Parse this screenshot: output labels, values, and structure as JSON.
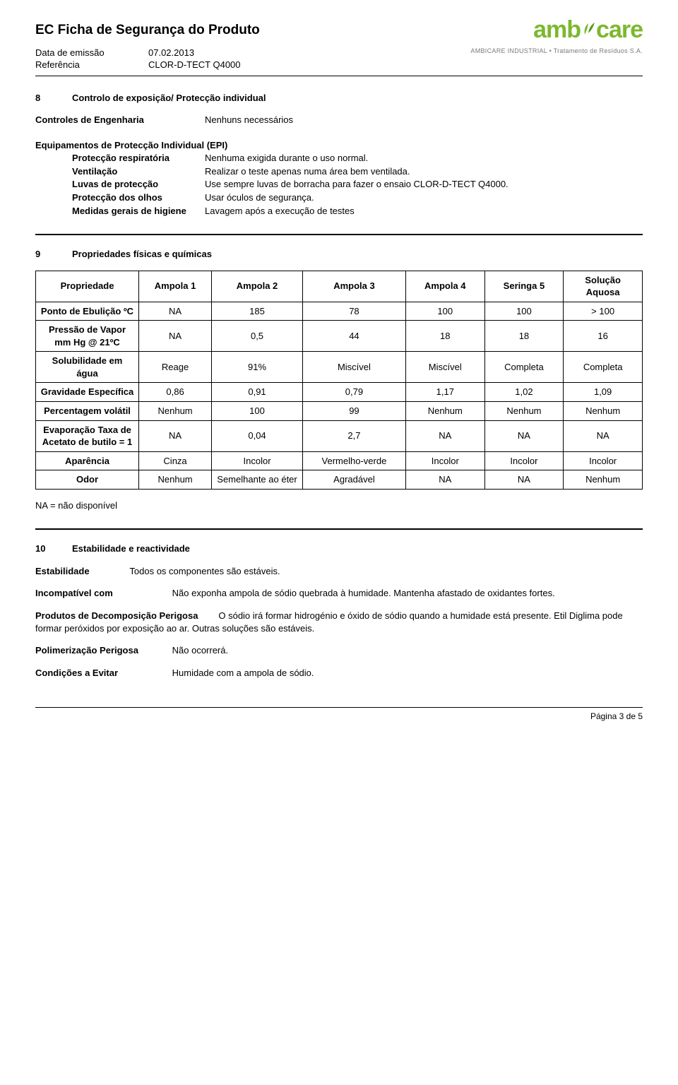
{
  "header": {
    "title": "EC Ficha de Segurança do Produto",
    "date_label": "Data de emissão",
    "date_value": "07.02.2013",
    "ref_label": "Referência",
    "ref_value": "CLOR-D-TECT Q4000",
    "logo_text": "amb care",
    "logo_sub": "AMBICARE INDUSTRIAL • Tratamento de Resíduos S.A."
  },
  "section8": {
    "num": "8",
    "title": "Controlo de exposição/ Protecção individual",
    "controls_label": "Controles de Engenharia",
    "controls_value": "Nenhuns necessários",
    "epi_title": "Equipamentos de Protecção Individual (EPI)",
    "rows": [
      {
        "label": "Protecção respiratória",
        "value": "Nenhuma exigida durante o uso normal."
      },
      {
        "label": "Ventilação",
        "value": "Realizar o teste apenas numa área bem ventilada."
      },
      {
        "label": "Luvas de protecção",
        "value": "Use sempre luvas de borracha para fazer o ensaio CLOR-D-TECT Q4000."
      },
      {
        "label": "Protecção dos olhos",
        "value": "Usar óculos de segurança."
      },
      {
        "label": "Medidas gerais de higiene",
        "value": "Lavagem após a execução de testes"
      }
    ]
  },
  "section9": {
    "num": "9",
    "title": "Propriedades físicas e químicas",
    "columns": [
      "Propriedade",
      "Ampola 1",
      "Ampola 2",
      "Ampola 3",
      "Ampola 4",
      "Seringa 5",
      "Solução Aquosa"
    ],
    "rows": [
      {
        "head": "Ponto de Ebulição ºC",
        "cells": [
          "NA",
          "185",
          "78",
          "100",
          "100",
          "> 100"
        ]
      },
      {
        "head": "Pressão de Vapor\nmm Hg @ 21ºC",
        "cells": [
          "NA",
          "0,5",
          "44",
          "18",
          "18",
          "16"
        ]
      },
      {
        "head": "Solubilidade em água",
        "cells": [
          "Reage",
          "91%",
          "Miscível",
          "Miscível",
          "Completa",
          "Completa"
        ]
      },
      {
        "head": "Gravidade Específica",
        "cells": [
          "0,86",
          "0,91",
          "0,79",
          "1,17",
          "1,02",
          "1,09"
        ]
      },
      {
        "head": "Percentagem volátil",
        "cells": [
          "Nenhum",
          "100",
          "99",
          "Nenhum",
          "Nenhum",
          "Nenhum"
        ]
      },
      {
        "head": "Evaporação Taxa de Acetato de butilo = 1",
        "cells": [
          "NA",
          "0,04",
          "2,7",
          "NA",
          "NA",
          "NA"
        ]
      },
      {
        "head": "Aparência",
        "cells": [
          "Cinza",
          "Incolor",
          "Vermelho-verde",
          "Incolor",
          "Incolor",
          "Incolor"
        ]
      },
      {
        "head": "Odor",
        "cells": [
          "Nenhum",
          "Semelhante ao éter",
          "Agradável",
          "NA",
          "NA",
          "Nenhum"
        ]
      }
    ],
    "na_note": "NA = não disponível",
    "col_widths_pct": [
      17,
      12,
      15,
      17,
      13,
      13,
      13
    ],
    "border_color": "#000000"
  },
  "section10": {
    "num": "10",
    "title": "Estabilidade e reactividade",
    "stability_label": "Estabilidade",
    "stability_value": "Todos os componentes são estáveis.",
    "incompat_label": "Incompatível com",
    "incompat_value": "Não exponha ampola de sódio quebrada à humidade. Mantenha afastado de oxidantes fortes.",
    "decomp_label": "Produtos de Decomposição Perigosa",
    "decomp_value": "O sódio irá formar hidrogénio e óxido de sódio quando a humidade está presente. Etil Diglima pode formar peróxidos por exposição ao ar. Outras soluções são estáveis.",
    "polym_label": "Polimerização Perigosa",
    "polym_value": "Não ocorrerá.",
    "avoid_label": "Condições a Evitar",
    "avoid_value": "Humidade com a ampola de sódio."
  },
  "footer": {
    "page": "Página 3 de 5"
  },
  "colors": {
    "logo_green": "#7cb82f",
    "text": "#000000",
    "logo_sub": "#7a7a7a"
  }
}
